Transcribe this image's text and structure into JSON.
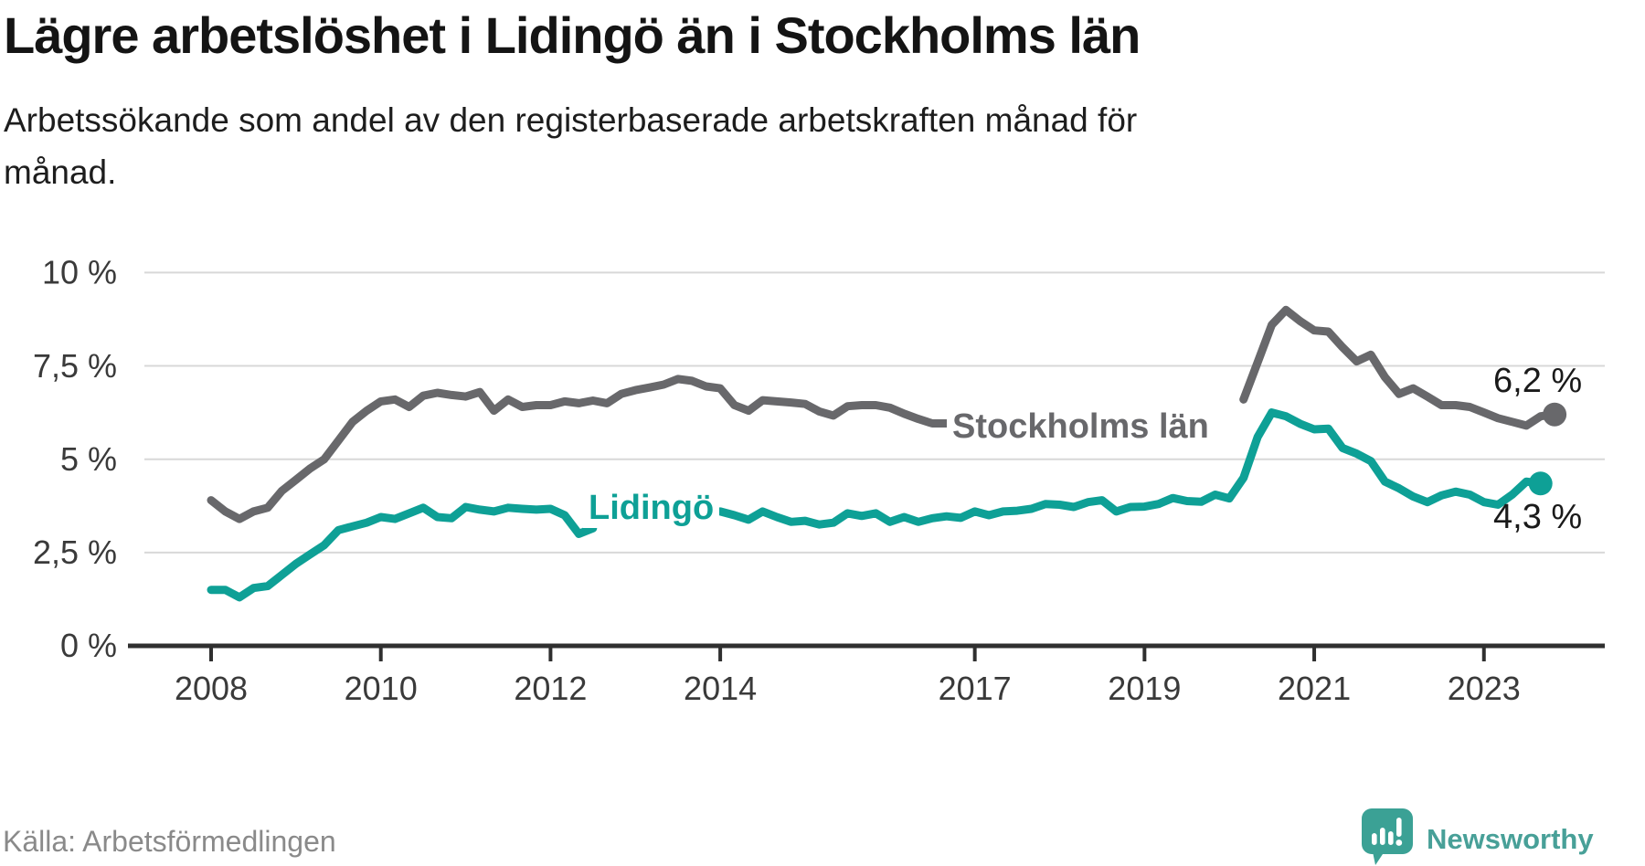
{
  "title": "Lägre arbetslöshet i Lidingö än i Stockholms län",
  "subtitle_lines": [
    "Arbetssökande som andel av den registerbaserade arbetskraften månad för",
    "månad."
  ],
  "source": "Källa: Arbetsförmedlingen",
  "branding": {
    "wordmark": "Newsworthy",
    "icon": "newsworthy-speech-bubble-bars-icon"
  },
  "colors": {
    "stockholm_line": "#68686b",
    "lidingo_line": "#0ea096",
    "grid": "#d8d8d8",
    "axis": "#2f2f2f",
    "tick_text": "#3a3a3a",
    "value_text": "#1a1a1a",
    "brand_teal": "#48a098"
  },
  "chart_data": {
    "type": "line",
    "unit": "%",
    "title": "Lägre arbetslöshet i Lidingö än i Stockholms län",
    "ylim": [
      0,
      10
    ],
    "grid": "horizontal",
    "x_start": 2008.0,
    "x_step_years": 0.166667,
    "x_ticks": [
      {
        "v": 2008,
        "label": "2008"
      },
      {
        "v": 2010,
        "label": "2010"
      },
      {
        "v": 2012,
        "label": "2012"
      },
      {
        "v": 2014,
        "label": "2014"
      },
      {
        "v": 2017,
        "label": "2017"
      },
      {
        "v": 2019,
        "label": "2019"
      },
      {
        "v": 2021,
        "label": "2021"
      },
      {
        "v": 2023,
        "label": "2023"
      }
    ],
    "y_ticks": [
      {
        "v": 0,
        "label": "0 %"
      },
      {
        "v": 2.5,
        "label": "2,5 %"
      },
      {
        "v": 5,
        "label": "5 %"
      },
      {
        "v": 7.5,
        "label": "7,5 %"
      },
      {
        "v": 10,
        "label": "10 %"
      }
    ],
    "series": [
      {
        "name": "Stockholms län",
        "color": "#68686b",
        "end_label": "6,2 %",
        "end_value": 6.2,
        "label_gap_note": "line interrupted by inline series label approx 2016.8-2019.9",
        "values": [
          3.9,
          3.6,
          3.4,
          3.6,
          3.7,
          4.15,
          4.45,
          4.75,
          5,
          5.5,
          6,
          6.3,
          6.55,
          6.6,
          6.4,
          6.7,
          6.78,
          6.72,
          6.68,
          6.8,
          6.3,
          6.6,
          6.4,
          6.45,
          6.45,
          6.55,
          6.5,
          6.57,
          6.5,
          6.75,
          6.85,
          6.92,
          7,
          7.15,
          7.1,
          6.95,
          6.9,
          6.45,
          6.3,
          6.58,
          6.55,
          6.52,
          6.48,
          6.28,
          6.17,
          6.42,
          6.45,
          6.45,
          6.38,
          6.22,
          6.08,
          5.96,
          5.96,
          null,
          null,
          null,
          null,
          null,
          null,
          null,
          null,
          null,
          null,
          null,
          null,
          null,
          null,
          null,
          null,
          null,
          null,
          null,
          null,
          6.6,
          7.6,
          8.6,
          9,
          8.7,
          8.45,
          8.42,
          8,
          7.62,
          7.8,
          7.2,
          6.75,
          6.9,
          6.68,
          6.45,
          6.45,
          6.4,
          6.25,
          6.1,
          6,
          5.9,
          6.15,
          6.2
        ]
      },
      {
        "name": "Lidingö",
        "color": "#0ea096",
        "end_label": "4,3 %",
        "end_value": 4.3,
        "label_gap_note": "line interrupted by inline series label approx 2012.7-2013.9",
        "values": [
          1.5,
          1.5,
          1.3,
          1.55,
          1.6,
          1.9,
          2.2,
          2.45,
          2.7,
          3.1,
          3.2,
          3.3,
          3.45,
          3.4,
          3.55,
          3.7,
          3.45,
          3.42,
          3.72,
          3.65,
          3.6,
          3.7,
          3.67,
          3.65,
          3.67,
          3.5,
          3,
          3.15,
          null,
          null,
          null,
          null,
          null,
          null,
          null,
          null,
          3.6,
          3.5,
          3.38,
          3.6,
          3.45,
          3.32,
          3.35,
          3.25,
          3.3,
          3.55,
          3.48,
          3.55,
          3.32,
          3.45,
          3.32,
          3.42,
          3.47,
          3.43,
          3.6,
          3.5,
          3.6,
          3.62,
          3.67,
          3.8,
          3.78,
          3.72,
          3.85,
          3.9,
          3.6,
          3.72,
          3.73,
          3.8,
          3.96,
          3.88,
          3.86,
          4.05,
          3.95,
          4.5,
          5.6,
          6.25,
          6.15,
          5.95,
          5.8,
          5.82,
          5.3,
          5.15,
          4.95,
          4.4,
          4.22,
          4,
          3.85,
          4.03,
          4.13,
          4.05,
          3.85,
          3.78,
          4.05,
          4.4,
          4.35
        ]
      }
    ]
  }
}
